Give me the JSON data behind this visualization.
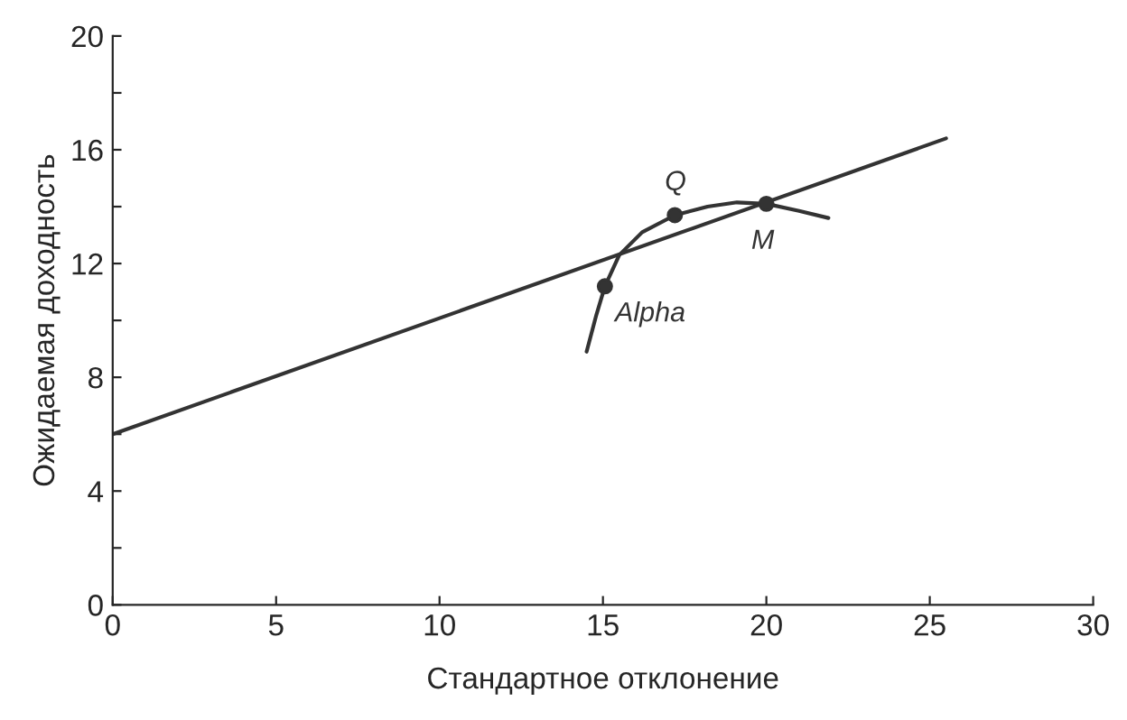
{
  "chart_data": {
    "type": "line",
    "xlabel": "Стандартное отклонение",
    "ylabel": "Ожидаемая доходность",
    "xlim": [
      0,
      30
    ],
    "ylim": [
      0,
      20
    ],
    "xticks": [
      0,
      5,
      10,
      15,
      20,
      25,
      30
    ],
    "yticks": [
      0,
      {
        "value": 2,
        "label": null
      },
      4,
      {
        "value": 6,
        "label": null
      },
      8,
      {
        "value": 10,
        "label": null
      },
      12,
      {
        "value": 14,
        "label": null
      },
      16,
      {
        "value": 18,
        "label": null
      },
      20
    ],
    "grid": false,
    "legend": false,
    "series": [
      {
        "color": "#333333",
        "x": [
          0,
          25.5
        ],
        "values": [
          6,
          16.4
        ]
      },
      {
        "color": "#333333",
        "x": [
          14.5,
          14.8,
          15.06,
          15.5,
          16.2,
          17.2,
          18.2,
          19.1,
          20,
          21,
          21.9
        ],
        "values": [
          8.9,
          10.2,
          11.2,
          12.3,
          13.1,
          13.7,
          14.0,
          14.15,
          14.1,
          13.85,
          13.6
        ]
      },
      {
        "type": "scatter",
        "color": "#333333",
        "marker": "circle",
        "x": [
          15.06,
          17.2,
          20
        ],
        "values": [
          11.2,
          13.7,
          14.1
        ]
      }
    ],
    "annotations": [
      {
        "text": "Alpha",
        "x": 15.06,
        "y": 11.2
      },
      {
        "text": "Q",
        "x": 17.2,
        "y": 13.7
      },
      {
        "text": "M",
        "x": 20,
        "y": 14.1
      }
    ]
  }
}
